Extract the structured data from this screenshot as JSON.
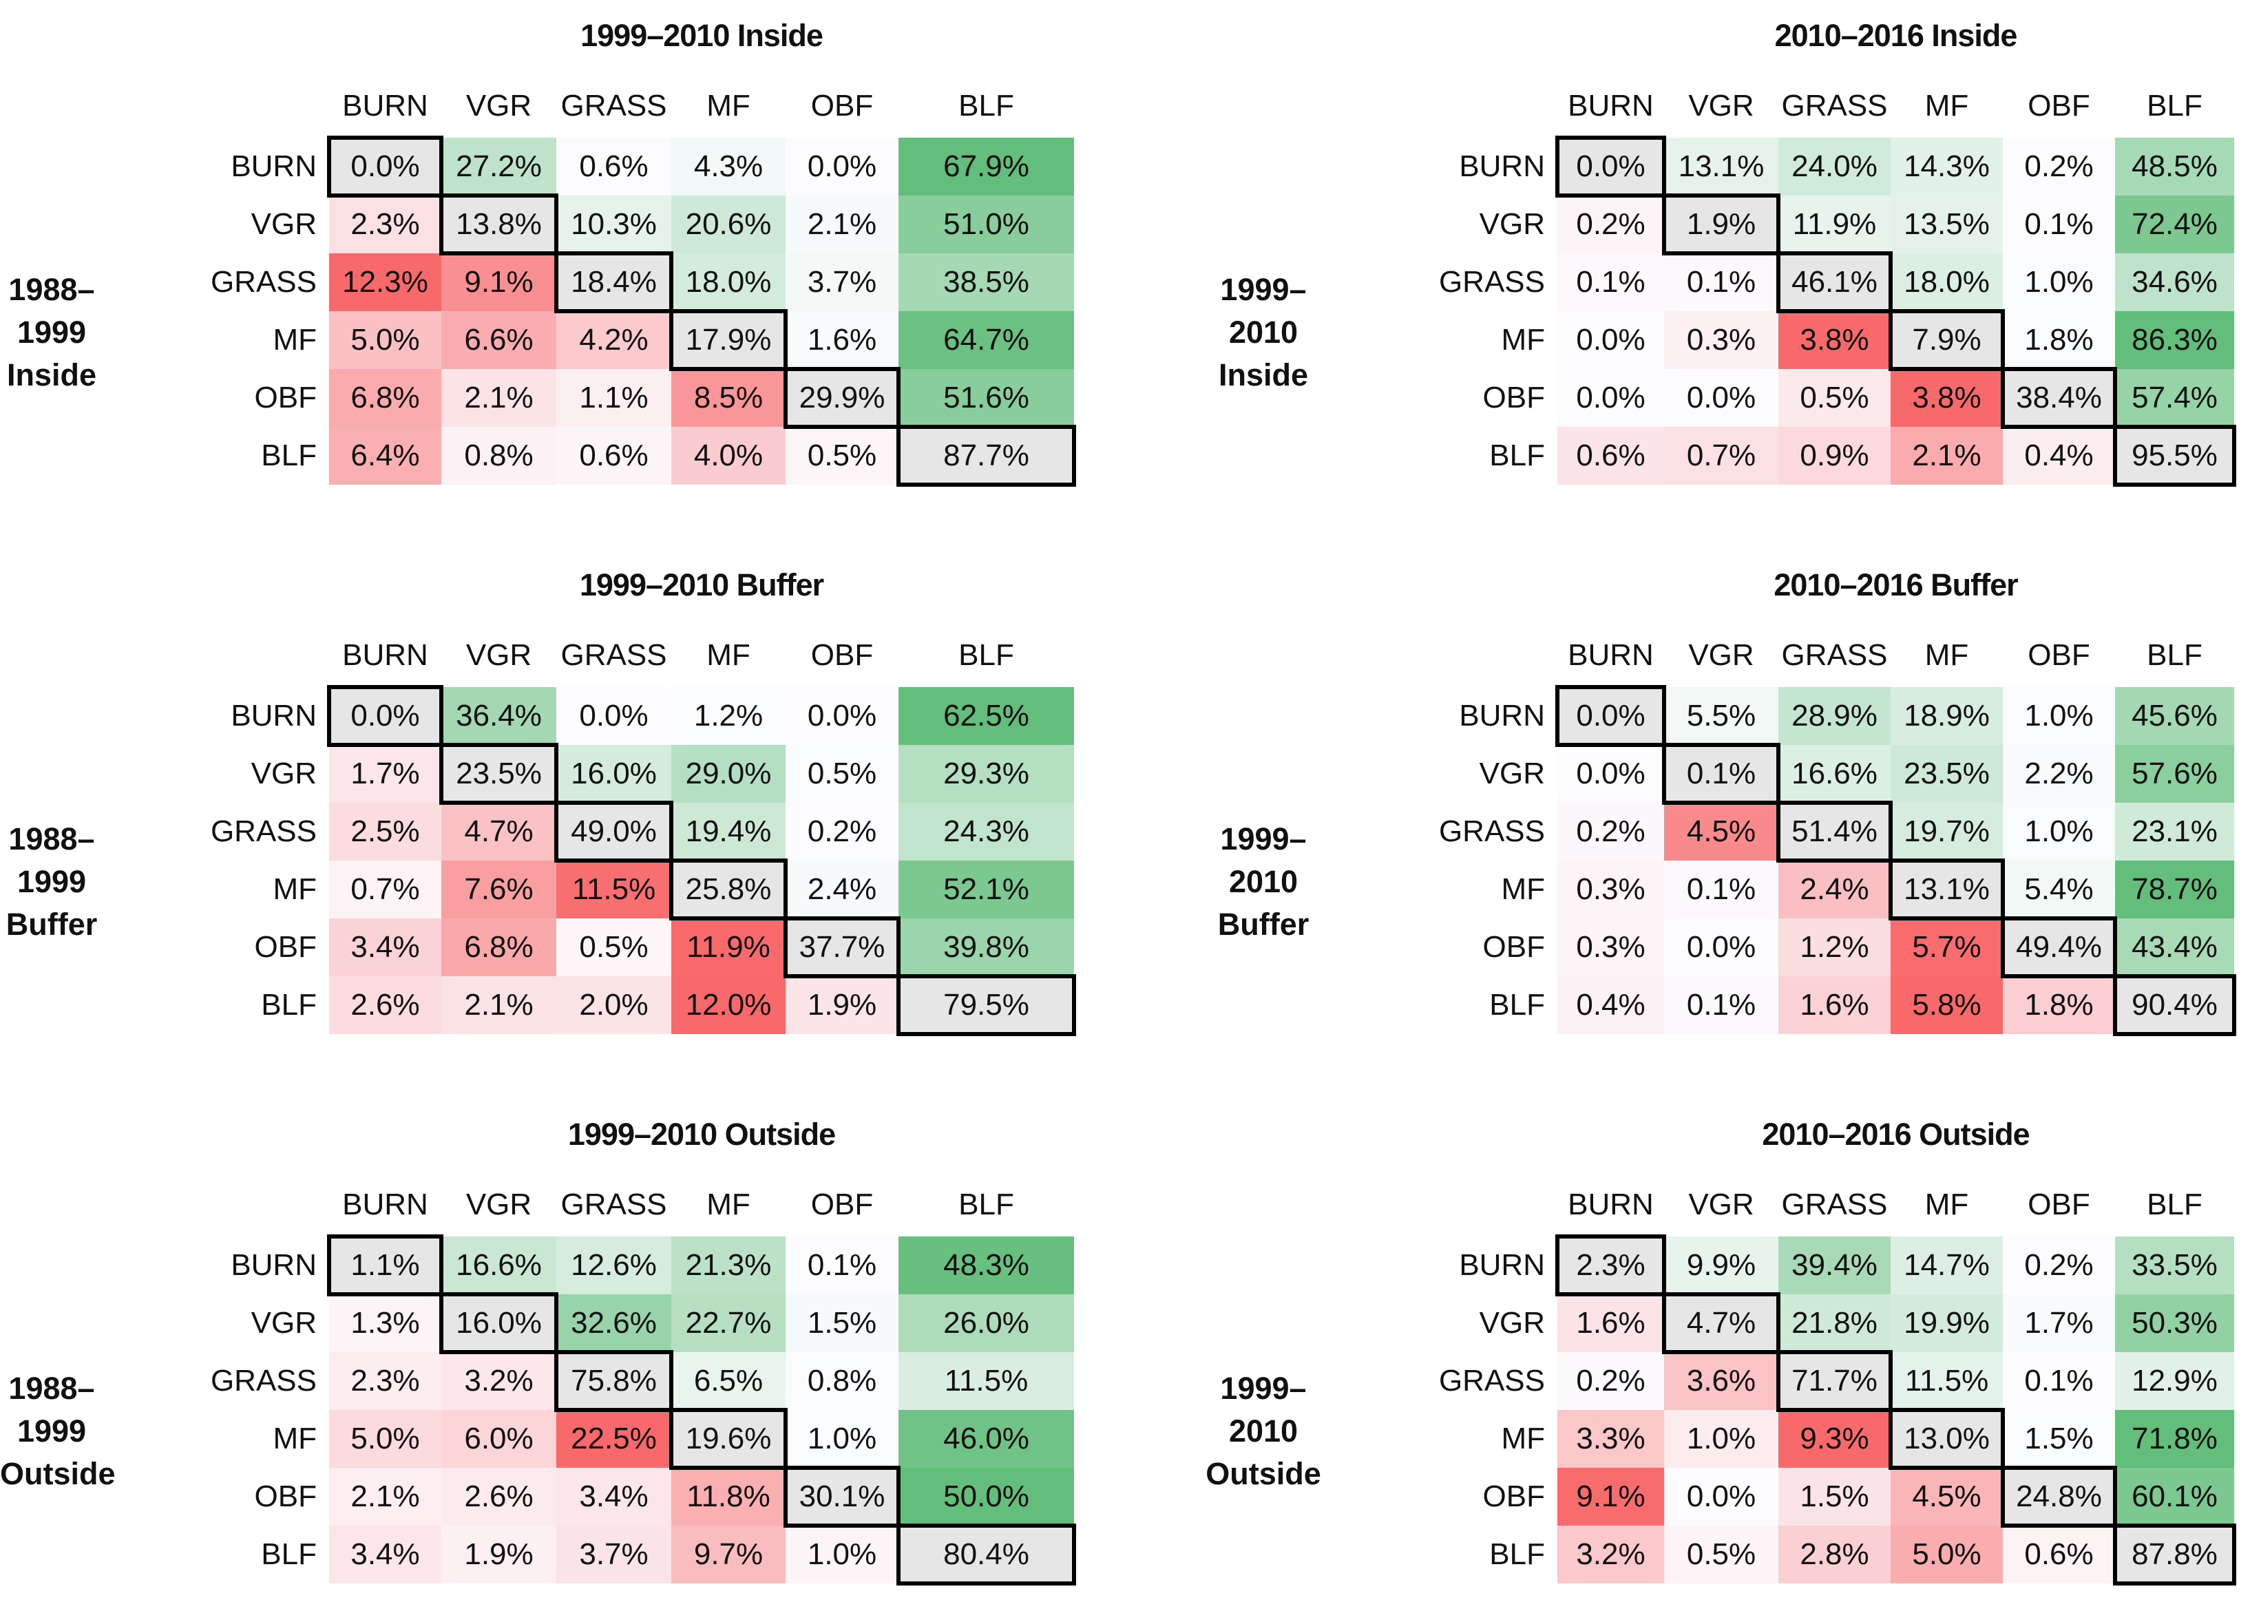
{
  "chart_data": [
    {
      "type": "heatmap",
      "title": "1999–2010 Inside",
      "row_group_label": [
        "1988–1999",
        "Inside"
      ],
      "columns": [
        "BURN",
        "VGR",
        "GRASS",
        "MF",
        "OBF",
        "BLF"
      ],
      "rows": [
        "BURN",
        "VGR",
        "GRASS",
        "MF",
        "OBF",
        "BLF"
      ],
      "values": [
        [
          "0.0%",
          "27.2%",
          "0.6%",
          "4.3%",
          "0.0%",
          "67.9%"
        ],
        [
          "2.3%",
          "13.8%",
          "10.3%",
          "20.6%",
          "2.1%",
          "51.0%"
        ],
        [
          "12.3%",
          "9.1%",
          "18.4%",
          "18.0%",
          "3.7%",
          "38.5%"
        ],
        [
          "5.0%",
          "6.6%",
          "4.2%",
          "17.9%",
          "1.6%",
          "64.7%"
        ],
        [
          "6.8%",
          "2.1%",
          "1.1%",
          "8.5%",
          "29.9%",
          "51.6%"
        ],
        [
          "6.4%",
          "0.8%",
          "0.6%",
          "4.0%",
          "0.5%",
          "87.7%"
        ]
      ]
    },
    {
      "type": "heatmap",
      "title": "2010–2016 Inside",
      "row_group_label": [
        "1999–2010",
        "Inside"
      ],
      "columns": [
        "BURN",
        "VGR",
        "GRASS",
        "MF",
        "OBF",
        "BLF"
      ],
      "rows": [
        "BURN",
        "VGR",
        "GRASS",
        "MF",
        "OBF",
        "BLF"
      ],
      "values": [
        [
          "0.0%",
          "13.1%",
          "24.0%",
          "14.3%",
          "0.2%",
          "48.5%"
        ],
        [
          "0.2%",
          "1.9%",
          "11.9%",
          "13.5%",
          "0.1%",
          "72.4%"
        ],
        [
          "0.1%",
          "0.1%",
          "46.1%",
          "18.0%",
          "1.0%",
          "34.6%"
        ],
        [
          "0.0%",
          "0.3%",
          "3.8%",
          "7.9%",
          "1.8%",
          "86.3%"
        ],
        [
          "0.0%",
          "0.0%",
          "0.5%",
          "3.8%",
          "38.4%",
          "57.4%"
        ],
        [
          "0.6%",
          "0.7%",
          "0.9%",
          "2.1%",
          "0.4%",
          "95.5%"
        ]
      ]
    },
    {
      "type": "heatmap",
      "title": "1999–2010 Buffer",
      "row_group_label": [
        "1988–1999",
        "Buffer"
      ],
      "columns": [
        "BURN",
        "VGR",
        "GRASS",
        "MF",
        "OBF",
        "BLF"
      ],
      "rows": [
        "BURN",
        "VGR",
        "GRASS",
        "MF",
        "OBF",
        "BLF"
      ],
      "values": [
        [
          "0.0%",
          "36.4%",
          "0.0%",
          "1.2%",
          "0.0%",
          "62.5%"
        ],
        [
          "1.7%",
          "23.5%",
          "16.0%",
          "29.0%",
          "0.5%",
          "29.3%"
        ],
        [
          "2.5%",
          "4.7%",
          "49.0%",
          "19.4%",
          "0.2%",
          "24.3%"
        ],
        [
          "0.7%",
          "7.6%",
          "11.5%",
          "25.8%",
          "2.4%",
          "52.1%"
        ],
        [
          "3.4%",
          "6.8%",
          "0.5%",
          "11.9%",
          "37.7%",
          "39.8%"
        ],
        [
          "2.6%",
          "2.1%",
          "2.0%",
          "12.0%",
          "1.9%",
          "79.5%"
        ]
      ]
    },
    {
      "type": "heatmap",
      "title": "2010–2016 Buffer",
      "row_group_label": [
        "1999–2010",
        "Buffer"
      ],
      "columns": [
        "BURN",
        "VGR",
        "GRASS",
        "MF",
        "OBF",
        "BLF"
      ],
      "rows": [
        "BURN",
        "VGR",
        "GRASS",
        "MF",
        "OBF",
        "BLF"
      ],
      "values": [
        [
          "0.0%",
          "5.5%",
          "28.9%",
          "18.9%",
          "1.0%",
          "45.6%"
        ],
        [
          "0.0%",
          "0.1%",
          "16.6%",
          "23.5%",
          "2.2%",
          "57.6%"
        ],
        [
          "0.2%",
          "4.5%",
          "51.4%",
          "19.7%",
          "1.0%",
          "23.1%"
        ],
        [
          "0.3%",
          "0.1%",
          "2.4%",
          "13.1%",
          "5.4%",
          "78.7%"
        ],
        [
          "0.3%",
          "0.0%",
          "1.2%",
          "5.7%",
          "49.4%",
          "43.4%"
        ],
        [
          "0.4%",
          "0.1%",
          "1.6%",
          "5.8%",
          "1.8%",
          "90.4%"
        ]
      ]
    },
    {
      "type": "heatmap",
      "title": "1999–2010 Outside",
      "row_group_label": [
        "1988–1999",
        "Outside"
      ],
      "columns": [
        "BURN",
        "VGR",
        "GRASS",
        "MF",
        "OBF",
        "BLF"
      ],
      "rows": [
        "BURN",
        "VGR",
        "GRASS",
        "MF",
        "OBF",
        "BLF"
      ],
      "values": [
        [
          "1.1%",
          "16.6%",
          "12.6%",
          "21.3%",
          "0.1%",
          "48.3%"
        ],
        [
          "1.3%",
          "16.0%",
          "32.6%",
          "22.7%",
          "1.5%",
          "26.0%"
        ],
        [
          "2.3%",
          "3.2%",
          "75.8%",
          "6.5%",
          "0.8%",
          "11.5%"
        ],
        [
          "5.0%",
          "6.0%",
          "22.5%",
          "19.6%",
          "1.0%",
          "46.0%"
        ],
        [
          "2.1%",
          "2.6%",
          "3.4%",
          "11.8%",
          "30.1%",
          "50.0%"
        ],
        [
          "3.4%",
          "1.9%",
          "3.7%",
          "9.7%",
          "1.0%",
          "80.4%"
        ]
      ]
    },
    {
      "type": "heatmap",
      "title": "2010–2016 Outside",
      "row_group_label": [
        "1999–2010",
        "Outside"
      ],
      "columns": [
        "BURN",
        "VGR",
        "GRASS",
        "MF",
        "OBF",
        "BLF"
      ],
      "rows": [
        "BURN",
        "VGR",
        "GRASS",
        "MF",
        "OBF",
        "BLF"
      ],
      "values": [
        [
          "2.3%",
          "9.9%",
          "39.4%",
          "14.7%",
          "0.2%",
          "33.5%"
        ],
        [
          "1.6%",
          "4.7%",
          "21.8%",
          "19.9%",
          "1.7%",
          "50.3%"
        ],
        [
          "0.2%",
          "3.6%",
          "71.7%",
          "11.5%",
          "0.1%",
          "12.9%"
        ],
        [
          "3.3%",
          "1.0%",
          "9.3%",
          "13.0%",
          "1.5%",
          "71.8%"
        ],
        [
          "9.1%",
          "0.0%",
          "1.5%",
          "4.5%",
          "24.8%",
          "60.1%"
        ],
        [
          "3.2%",
          "0.5%",
          "2.8%",
          "5.0%",
          "0.6%",
          "87.8%"
        ]
      ]
    }
  ],
  "colors": {
    "gain_green": "#63be7b",
    "loss_red": "#f8696b",
    "neutral": "#fcfcff",
    "diagonal_fill": "#e6e6e6",
    "stair_outline": "#000000"
  }
}
